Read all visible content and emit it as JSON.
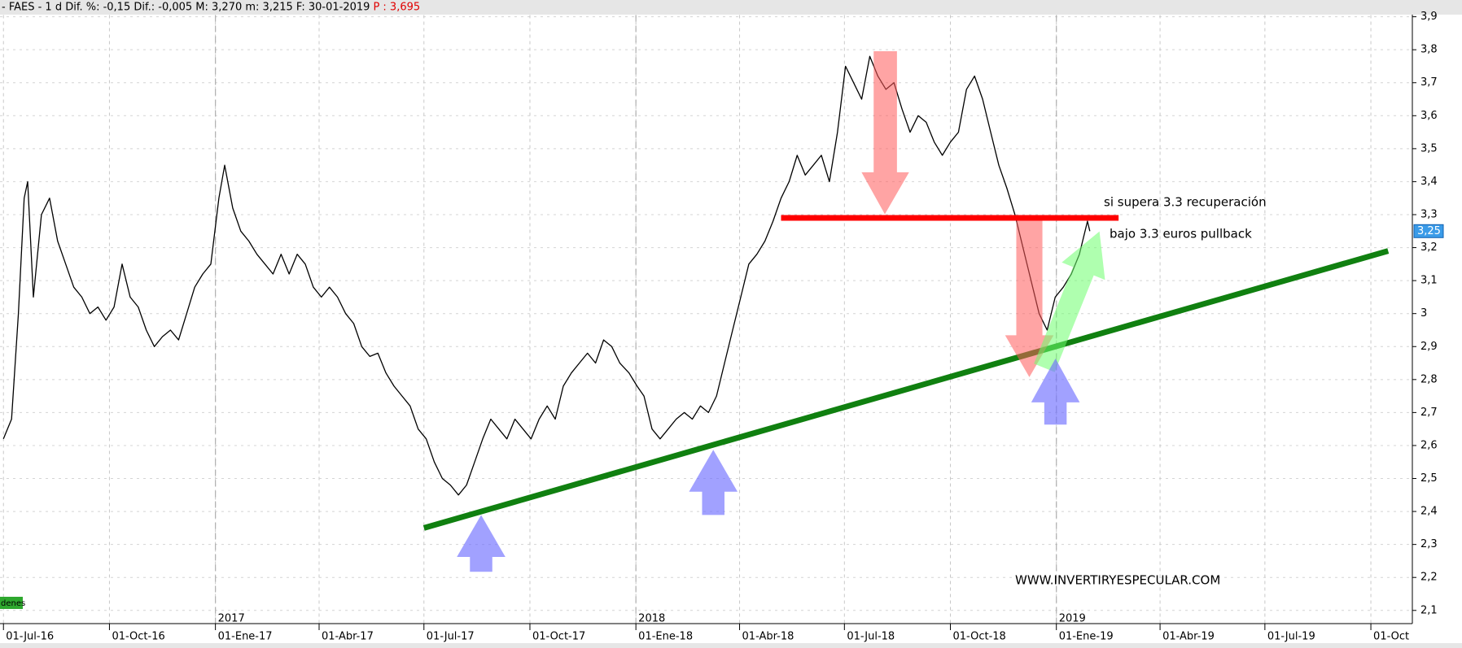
{
  "header": {
    "info": "- FAES -  1 d Dif. %: -0,15 Dif.: -0,005 M: 3,270 m: 3,215 F: 30-01-2019",
    "price": "P : 3,695"
  },
  "chart_data": {
    "type": "line",
    "color": "#000000",
    "x": [
      "2016-07-01",
      "2016-07-08",
      "2016-07-14",
      "2016-07-19",
      "2016-07-22",
      "2016-07-27",
      "2016-08-03",
      "2016-08-10",
      "2016-08-17",
      "2016-08-24",
      "2016-08-31",
      "2016-09-07",
      "2016-09-14",
      "2016-09-21",
      "2016-09-28",
      "2016-10-05",
      "2016-10-12",
      "2016-10-19",
      "2016-10-26",
      "2016-11-02",
      "2016-11-09",
      "2016-11-16",
      "2016-11-23",
      "2016-11-30",
      "2016-12-07",
      "2016-12-14",
      "2016-12-21",
      "2016-12-28",
      "2017-01-04",
      "2017-01-09",
      "2017-01-16",
      "2017-01-23",
      "2017-01-30",
      "2017-02-06",
      "2017-02-13",
      "2017-02-20",
      "2017-02-27",
      "2017-03-06",
      "2017-03-13",
      "2017-03-20",
      "2017-03-27",
      "2017-04-03",
      "2017-04-10",
      "2017-04-17",
      "2017-04-24",
      "2017-05-01",
      "2017-05-08",
      "2017-05-15",
      "2017-05-22",
      "2017-05-29",
      "2017-06-05",
      "2017-06-12",
      "2017-06-19",
      "2017-06-26",
      "2017-07-03",
      "2017-07-10",
      "2017-07-17",
      "2017-07-24",
      "2017-07-31",
      "2017-08-07",
      "2017-08-14",
      "2017-08-21",
      "2017-08-28",
      "2017-09-04",
      "2017-09-11",
      "2017-09-18",
      "2017-09-25",
      "2017-10-02",
      "2017-10-09",
      "2017-10-16",
      "2017-10-23",
      "2017-10-30",
      "2017-11-06",
      "2017-11-13",
      "2017-11-20",
      "2017-11-27",
      "2017-12-04",
      "2017-12-11",
      "2017-12-18",
      "2017-12-26",
      "2018-01-02",
      "2018-01-08",
      "2018-01-15",
      "2018-01-22",
      "2018-01-29",
      "2018-02-05",
      "2018-02-12",
      "2018-02-19",
      "2018-02-26",
      "2018-03-05",
      "2018-03-12",
      "2018-03-19",
      "2018-03-26",
      "2018-04-02",
      "2018-04-09",
      "2018-04-16",
      "2018-04-23",
      "2018-04-30",
      "2018-05-07",
      "2018-05-14",
      "2018-05-21",
      "2018-05-28",
      "2018-06-04",
      "2018-06-11",
      "2018-06-18",
      "2018-06-25",
      "2018-07-02",
      "2018-07-09",
      "2018-07-16",
      "2018-07-23",
      "2018-07-30",
      "2018-08-06",
      "2018-08-13",
      "2018-08-20",
      "2018-08-27",
      "2018-09-03",
      "2018-09-10",
      "2018-09-17",
      "2018-09-24",
      "2018-10-01",
      "2018-10-08",
      "2018-10-15",
      "2018-10-22",
      "2018-10-29",
      "2018-11-05",
      "2018-11-12",
      "2018-11-19",
      "2018-11-26",
      "2018-12-03",
      "2018-12-10",
      "2018-12-17",
      "2018-12-24",
      "2018-12-31",
      "2019-01-07",
      "2019-01-14",
      "2019-01-21",
      "2019-01-28",
      "2019-01-30"
    ],
    "values": [
      2.62,
      2.68,
      3.0,
      3.35,
      3.4,
      3.05,
      3.3,
      3.35,
      3.22,
      3.15,
      3.08,
      3.05,
      3.0,
      3.02,
      2.98,
      3.02,
      3.15,
      3.05,
      3.02,
      2.95,
      2.9,
      2.93,
      2.95,
      2.92,
      3.0,
      3.08,
      3.12,
      3.15,
      3.35,
      3.45,
      3.32,
      3.25,
      3.22,
      3.18,
      3.15,
      3.12,
      3.18,
      3.12,
      3.18,
      3.15,
      3.08,
      3.05,
      3.08,
      3.05,
      3.0,
      2.97,
      2.9,
      2.87,
      2.88,
      2.82,
      2.78,
      2.75,
      2.72,
      2.65,
      2.62,
      2.55,
      2.5,
      2.48,
      2.45,
      2.48,
      2.55,
      2.62,
      2.68,
      2.65,
      2.62,
      2.68,
      2.65,
      2.62,
      2.68,
      2.72,
      2.68,
      2.78,
      2.82,
      2.85,
      2.88,
      2.85,
      2.92,
      2.9,
      2.85,
      2.82,
      2.78,
      2.75,
      2.65,
      2.62,
      2.65,
      2.68,
      2.7,
      2.68,
      2.72,
      2.7,
      2.75,
      2.85,
      2.95,
      3.05,
      3.15,
      3.18,
      3.22,
      3.28,
      3.35,
      3.4,
      3.48,
      3.42,
      3.45,
      3.48,
      3.4,
      3.55,
      3.75,
      3.7,
      3.65,
      3.78,
      3.72,
      3.68,
      3.7,
      3.62,
      3.55,
      3.6,
      3.58,
      3.52,
      3.48,
      3.52,
      3.55,
      3.68,
      3.72,
      3.65,
      3.55,
      3.45,
      3.38,
      3.3,
      3.2,
      3.1,
      3.0,
      2.95,
      3.05,
      3.08,
      3.12,
      3.18,
      3.28,
      3.25
    ],
    "last_price": {
      "value": 3.25,
      "label": "3,25"
    },
    "xlim": [
      "2016-06-28",
      "2019-11-06"
    ],
    "xticks": [
      {
        "value": "2016-07-01",
        "label": "01-Jul-16"
      },
      {
        "value": "2016-10-01",
        "label": "01-Oct-16"
      },
      {
        "value": "2017-01-01",
        "label": "01-Ene-17"
      },
      {
        "value": "2017-04-01",
        "label": "01-Abr-17"
      },
      {
        "value": "2017-07-01",
        "label": "01-Jul-17"
      },
      {
        "value": "2017-10-01",
        "label": "01-Oct-17"
      },
      {
        "value": "2018-01-01",
        "label": "01-Ene-18"
      },
      {
        "value": "2018-04-01",
        "label": "01-Abr-18"
      },
      {
        "value": "2018-07-01",
        "label": "01-Jul-18"
      },
      {
        "value": "2018-10-01",
        "label": "01-Oct-18"
      },
      {
        "value": "2019-01-01",
        "label": "01-Ene-19"
      },
      {
        "value": "2019-04-01",
        "label": "01-Abr-19"
      },
      {
        "value": "2019-07-01",
        "label": "01-Jul-19"
      },
      {
        "value": "2019-10-01",
        "label": "01-Oct"
      }
    ],
    "year_marks": [
      {
        "value": "2017-01-01",
        "label": "2017"
      },
      {
        "value": "2018-01-01",
        "label": "2018"
      },
      {
        "value": "2019-01-01",
        "label": "2019"
      }
    ],
    "ylim": [
      2.06,
      3.92
    ],
    "yticks": [
      {
        "value": 2.1,
        "label": "2,1"
      },
      {
        "value": 2.2,
        "label": "2,2"
      },
      {
        "value": 2.3,
        "label": "2,3"
      },
      {
        "value": 2.4,
        "label": "2,4"
      },
      {
        "value": 2.5,
        "label": "2,5"
      },
      {
        "value": 2.6,
        "label": "2,6"
      },
      {
        "value": 2.7,
        "label": "2,7"
      },
      {
        "value": 2.8,
        "label": "2,8"
      },
      {
        "value": 2.9,
        "label": "2,9"
      },
      {
        "value": 3,
        "label": "3"
      },
      {
        "value": 3.1,
        "label": "3,1"
      },
      {
        "value": 3.2,
        "label": "3,2"
      },
      {
        "value": 3.3,
        "label": "3,3"
      },
      {
        "value": 3.4,
        "label": "3,4"
      },
      {
        "value": 3.5,
        "label": "3,5"
      },
      {
        "value": 3.6,
        "label": "3,6"
      },
      {
        "value": 3.7,
        "label": "3,7"
      },
      {
        "value": 3.8,
        "label": "3,8"
      },
      {
        "value": 3.9,
        "label": "3,9"
      }
    ],
    "grid": true,
    "trend_lines": [
      {
        "x": [
          "2018-05-07",
          "2019-02-24"
        ],
        "y": [
          3.29,
          3.29
        ],
        "color": "#ff0000"
      },
      {
        "x": [
          "2017-07-01",
          "2019-10-16"
        ],
        "y": [
          2.35,
          3.19
        ],
        "color": "#108010"
      }
    ],
    "annotations": [
      "si supera 3.3 recuperación",
      "bajo 3.3 euros pullback",
      "WWW.INVERTIRYESPECULAR.COM"
    ],
    "badge": "denes"
  }
}
